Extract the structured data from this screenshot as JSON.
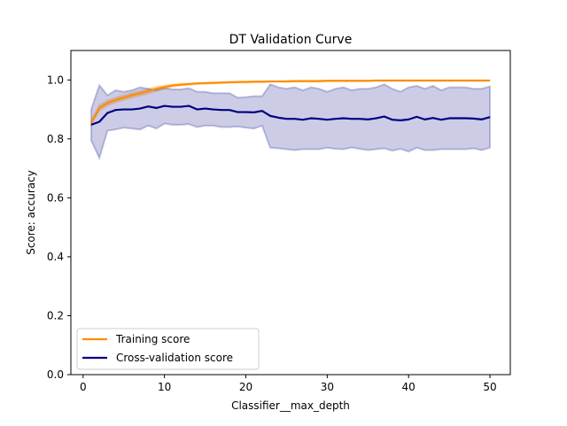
{
  "chart_data": {
    "type": "line",
    "title": "DT Validation Curve",
    "xlabel": "Classifier__max_depth",
    "ylabel": "Score: accuracy",
    "xlim": [
      -1.5,
      52.5
    ],
    "ylim": [
      0,
      1.1
    ],
    "xticks": [
      0,
      10,
      20,
      30,
      40,
      50
    ],
    "yticks": [
      0.0,
      0.2,
      0.4,
      0.6,
      0.8,
      1.0
    ],
    "xtick_labels": [
      "0",
      "10",
      "20",
      "30",
      "40",
      "50"
    ],
    "ytick_labels": [
      "0.0",
      "0.2",
      "0.4",
      "0.6",
      "0.8",
      "1.0"
    ],
    "grid": false,
    "legend_position": "lower-left",
    "x": [
      1,
      2,
      3,
      4,
      5,
      6,
      7,
      8,
      9,
      10,
      11,
      12,
      13,
      14,
      15,
      16,
      17,
      18,
      19,
      20,
      21,
      22,
      23,
      24,
      25,
      26,
      27,
      28,
      29,
      30,
      31,
      32,
      33,
      34,
      35,
      36,
      37,
      38,
      39,
      40,
      41,
      42,
      43,
      44,
      45,
      46,
      47,
      48,
      49,
      50
    ],
    "series": [
      {
        "name": "Training score",
        "color": "#ff8c00",
        "values": [
          0.855,
          0.905,
          0.922,
          0.932,
          0.94,
          0.948,
          0.955,
          0.962,
          0.97,
          0.976,
          0.981,
          0.984,
          0.986,
          0.988,
          0.989,
          0.99,
          0.991,
          0.992,
          0.993,
          0.993,
          0.994,
          0.994,
          0.995,
          0.995,
          0.995,
          0.996,
          0.996,
          0.996,
          0.996,
          0.997,
          0.997,
          0.997,
          0.997,
          0.997,
          0.997,
          0.998,
          0.998,
          0.998,
          0.998,
          0.998,
          0.998,
          0.998,
          0.998,
          0.998,
          0.998,
          0.998,
          0.998,
          0.998,
          0.998,
          0.998
        ],
        "band_upper": [
          0.862,
          0.915,
          0.93,
          0.94,
          0.948,
          0.956,
          0.963,
          0.97,
          0.977,
          0.982,
          0.985,
          0.988,
          0.989,
          0.99,
          0.991,
          0.992,
          0.993,
          0.994,
          0.994,
          0.995,
          0.995,
          0.996,
          0.996,
          0.996,
          0.997,
          0.997,
          0.997,
          0.997,
          0.998,
          0.998,
          0.998,
          0.998,
          0.998,
          0.998,
          0.998,
          0.999,
          0.999,
          0.999,
          0.999,
          0.999,
          0.999,
          0.999,
          0.999,
          0.999,
          0.999,
          0.999,
          0.999,
          0.999,
          0.999,
          0.999
        ],
        "band_lower": [
          0.848,
          0.895,
          0.914,
          0.924,
          0.932,
          0.94,
          0.947,
          0.954,
          0.963,
          0.97,
          0.977,
          0.98,
          0.983,
          0.986,
          0.987,
          0.988,
          0.989,
          0.99,
          0.992,
          0.991,
          0.993,
          0.992,
          0.994,
          0.994,
          0.993,
          0.995,
          0.995,
          0.995,
          0.994,
          0.996,
          0.996,
          0.996,
          0.996,
          0.996,
          0.996,
          0.997,
          0.997,
          0.997,
          0.997,
          0.997,
          0.997,
          0.997,
          0.997,
          0.997,
          0.997,
          0.997,
          0.997,
          0.997,
          0.997,
          0.997
        ]
      },
      {
        "name": "Cross-validation score",
        "color": "#000080",
        "band_color": "#000080",
        "values": [
          0.848,
          0.858,
          0.888,
          0.898,
          0.9,
          0.9,
          0.903,
          0.91,
          0.905,
          0.912,
          0.909,
          0.909,
          0.912,
          0.9,
          0.903,
          0.9,
          0.898,
          0.898,
          0.891,
          0.891,
          0.89,
          0.895,
          0.878,
          0.872,
          0.868,
          0.868,
          0.865,
          0.87,
          0.868,
          0.865,
          0.868,
          0.87,
          0.868,
          0.868,
          0.866,
          0.87,
          0.876,
          0.865,
          0.863,
          0.866,
          0.875,
          0.866,
          0.871,
          0.865,
          0.87,
          0.87,
          0.87,
          0.869,
          0.866,
          0.874
        ],
        "band_upper": [
          0.9,
          0.982,
          0.948,
          0.965,
          0.96,
          0.965,
          0.975,
          0.97,
          0.965,
          0.972,
          0.968,
          0.968,
          0.972,
          0.96,
          0.96,
          0.955,
          0.955,
          0.955,
          0.94,
          0.942,
          0.945,
          0.945,
          0.985,
          0.975,
          0.97,
          0.975,
          0.965,
          0.975,
          0.97,
          0.96,
          0.97,
          0.975,
          0.965,
          0.97,
          0.97,
          0.975,
          0.985,
          0.97,
          0.96,
          0.975,
          0.98,
          0.97,
          0.98,
          0.965,
          0.975,
          0.975,
          0.975,
          0.97,
          0.97,
          0.978
        ],
        "band_lower": [
          0.795,
          0.735,
          0.828,
          0.832,
          0.838,
          0.835,
          0.832,
          0.845,
          0.835,
          0.852,
          0.848,
          0.848,
          0.85,
          0.84,
          0.845,
          0.845,
          0.84,
          0.84,
          0.842,
          0.838,
          0.835,
          0.845,
          0.77,
          0.768,
          0.765,
          0.762,
          0.765,
          0.765,
          0.765,
          0.77,
          0.766,
          0.765,
          0.771,
          0.766,
          0.762,
          0.765,
          0.768,
          0.76,
          0.766,
          0.757,
          0.77,
          0.762,
          0.762,
          0.765,
          0.765,
          0.765,
          0.765,
          0.768,
          0.762,
          0.77
        ]
      }
    ]
  }
}
